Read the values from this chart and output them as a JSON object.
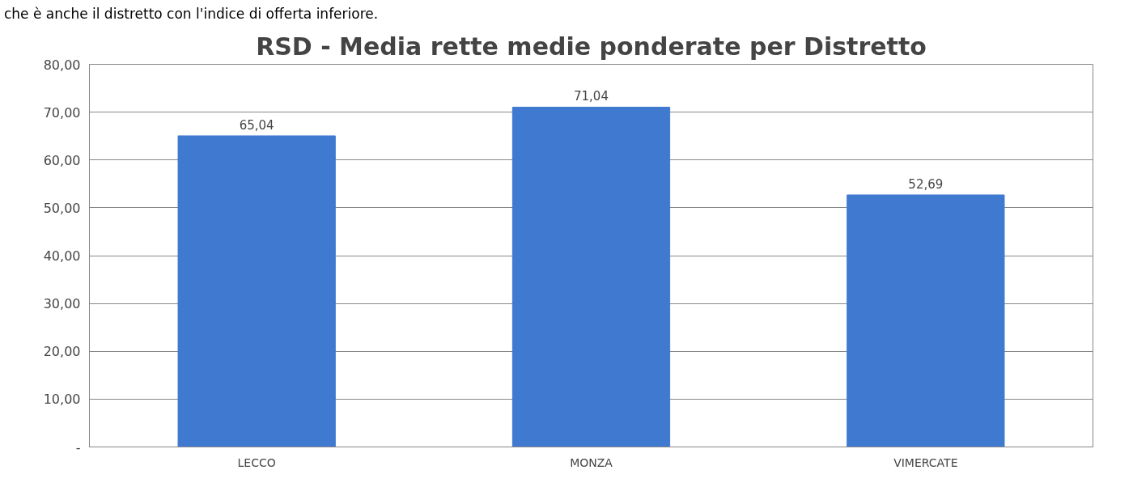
{
  "chart_data": {
    "type": "bar",
    "title": "RSD - Media rette medie ponderate per Distretto",
    "annotations": [
      "che è anche il distretto con l'indice di offerta inferiore."
    ],
    "categories": [
      "LECCO",
      "MONZA",
      "VIMERCATE"
    ],
    "values": [
      65.04,
      71.04,
      52.69
    ],
    "value_labels": [
      "65,04",
      "71,04",
      "52,69"
    ],
    "color": "#3f7ad0",
    "ylim": [
      0,
      80
    ],
    "yticks": [
      {
        "value": 0,
        "label": "-"
      },
      {
        "value": 10,
        "label": "10,00"
      },
      {
        "value": 20,
        "label": "20,00"
      },
      {
        "value": 30,
        "label": "30,00"
      },
      {
        "value": 40,
        "label": "40,00"
      },
      {
        "value": 50,
        "label": "50,00"
      },
      {
        "value": 60,
        "label": "60,00"
      },
      {
        "value": 70,
        "label": "70,00"
      },
      {
        "value": 80,
        "label": "80,00"
      }
    ],
    "grid": "y"
  }
}
